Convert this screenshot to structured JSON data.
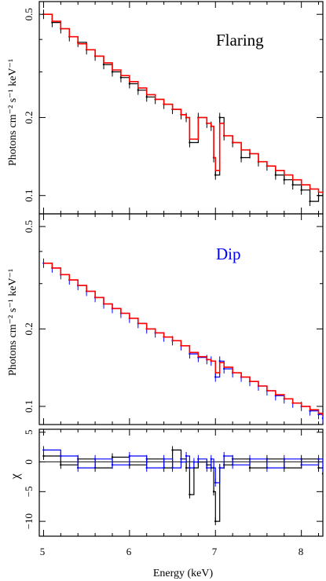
{
  "figure": {
    "xlabel": "Energy (keV)",
    "x_ticks": [
      "5",
      "6",
      "7",
      "8"
    ],
    "panel_ylabel": "Photons cm⁻² s⁻¹ keV⁻¹",
    "residual_ylabel": "χ"
  },
  "chart_data": [
    {
      "type": "line",
      "panel": "top",
      "label": "Flaring",
      "label_color": "#000000",
      "data_color": "#000000",
      "model_color": "#ff0000",
      "y_scale": "log",
      "xlim": [
        4.95,
        8.25
      ],
      "ylim": [
        0.085,
        0.56
      ],
      "y_ticks": [
        "0.1",
        "0.2",
        "0.5"
      ],
      "x": [
        5.0,
        5.1,
        5.2,
        5.3,
        5.4,
        5.5,
        5.6,
        5.7,
        5.8,
        5.9,
        6.0,
        6.1,
        6.2,
        6.3,
        6.4,
        6.5,
        6.6,
        6.66,
        6.7,
        6.8,
        6.9,
        6.95,
        6.98,
        7.0,
        7.05,
        7.1,
        7.2,
        7.3,
        7.4,
        7.5,
        7.6,
        7.7,
        7.8,
        7.9,
        8.0,
        8.1,
        8.2,
        8.25
      ],
      "series": [
        {
          "name": "data",
          "values": [
            0.5,
            0.465,
            0.44,
            0.41,
            0.39,
            0.365,
            0.345,
            0.32,
            0.3,
            0.285,
            0.27,
            0.255,
            0.24,
            0.235,
            0.225,
            0.215,
            0.205,
            0.2,
            0.16,
            0.2,
            0.19,
            0.185,
            0.14,
            0.12,
            0.2,
            0.17,
            0.16,
            0.14,
            0.145,
            0.135,
            0.13,
            0.12,
            0.115,
            0.11,
            0.105,
            0.095,
            0.1,
            0.1
          ]
        },
        {
          "name": "model",
          "values": [
            0.5,
            0.47,
            0.44,
            0.41,
            0.385,
            0.365,
            0.345,
            0.325,
            0.305,
            0.29,
            0.275,
            0.26,
            0.245,
            0.235,
            0.225,
            0.215,
            0.205,
            0.2,
            0.165,
            0.2,
            0.19,
            0.185,
            0.14,
            0.125,
            0.19,
            0.17,
            0.16,
            0.15,
            0.145,
            0.135,
            0.13,
            0.125,
            0.12,
            0.115,
            0.11,
            0.106,
            0.103,
            0.102
          ]
        }
      ]
    },
    {
      "type": "line",
      "panel": "middle",
      "label": "Dip",
      "label_color": "#0000ff",
      "data_color": "#0000ff",
      "model_color": "#ff0000",
      "y_scale": "log",
      "xlim": [
        4.95,
        8.25
      ],
      "ylim": [
        0.085,
        0.56
      ],
      "y_ticks": [
        "0.1",
        "0.2",
        "0.5"
      ],
      "x": [
        5.0,
        5.1,
        5.2,
        5.3,
        5.4,
        5.5,
        5.6,
        5.7,
        5.8,
        5.9,
        6.0,
        6.1,
        6.2,
        6.3,
        6.4,
        6.5,
        6.6,
        6.7,
        6.8,
        6.9,
        6.95,
        7.0,
        7.05,
        7.1,
        7.2,
        7.3,
        7.4,
        7.5,
        7.6,
        7.7,
        7.8,
        7.9,
        8.0,
        8.1,
        8.2,
        8.25
      ],
      "series": [
        {
          "name": "data",
          "values": [
            0.36,
            0.345,
            0.325,
            0.31,
            0.295,
            0.28,
            0.265,
            0.25,
            0.24,
            0.23,
            0.22,
            0.21,
            0.2,
            0.193,
            0.186,
            0.18,
            0.172,
            0.16,
            0.155,
            0.152,
            0.15,
            0.13,
            0.15,
            0.14,
            0.135,
            0.13,
            0.125,
            0.12,
            0.115,
            0.11,
            0.107,
            0.103,
            0.1,
            0.096,
            0.093,
            0.09
          ]
        },
        {
          "name": "model",
          "values": [
            0.36,
            0.345,
            0.325,
            0.31,
            0.295,
            0.28,
            0.265,
            0.25,
            0.24,
            0.23,
            0.22,
            0.21,
            0.2,
            0.193,
            0.186,
            0.18,
            0.172,
            0.162,
            0.156,
            0.152,
            0.15,
            0.135,
            0.148,
            0.142,
            0.135,
            0.13,
            0.125,
            0.12,
            0.115,
            0.111,
            0.107,
            0.103,
            0.1,
            0.097,
            0.094,
            0.092
          ]
        }
      ]
    },
    {
      "type": "line",
      "panel": "bottom",
      "label": "",
      "y_scale": "linear",
      "xlim": [
        4.95,
        8.25
      ],
      "ylim": [
        -12.5,
        5.5
      ],
      "y_ticks": [
        "5",
        "0",
        "−5",
        "−10"
      ],
      "y_tick_values": [
        5,
        0,
        -5,
        -10
      ],
      "x": [
        5.0,
        5.2,
        5.4,
        5.6,
        5.8,
        6.0,
        6.2,
        6.4,
        6.5,
        6.6,
        6.66,
        6.7,
        6.75,
        6.8,
        6.9,
        6.95,
        6.98,
        7.0,
        7.05,
        7.1,
        7.2,
        7.4,
        7.6,
        7.8,
        8.0,
        8.2,
        8.25
      ],
      "series": [
        {
          "name": "flaring",
          "color": "#000000",
          "values": [
            1,
            -0.5,
            0.5,
            -1,
            0.8,
            -0.5,
            0.5,
            -1,
            2,
            0.5,
            -1,
            -5.5,
            -1,
            0,
            -0.5,
            -1,
            -5,
            -10,
            -1,
            -0.5,
            0.5,
            -1,
            0.5,
            -1,
            0.5,
            -1,
            -2
          ]
        },
        {
          "name": "dip",
          "color": "#0000ff",
          "values": [
            2,
            1,
            -1,
            0.5,
            -0.5,
            1,
            -1,
            0.5,
            -1,
            0,
            1,
            -1,
            0,
            0.5,
            -1,
            0.5,
            -1,
            -3.5,
            -1,
            1,
            -0.5,
            0.5,
            -1,
            0.5,
            -0.5,
            0.5,
            -1
          ]
        }
      ]
    }
  ]
}
